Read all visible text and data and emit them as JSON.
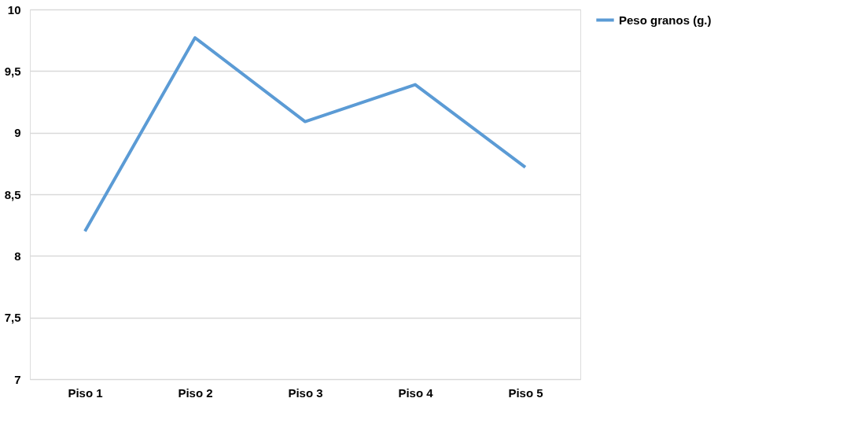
{
  "chart_data": {
    "type": "line",
    "categories": [
      "Piso 1",
      "Piso 2",
      "Piso 3",
      "Piso 4",
      "Piso 5"
    ],
    "series": [
      {
        "name": "Peso granos (g.)",
        "color": "#5b9bd5",
        "values": [
          8.2,
          9.77,
          9.09,
          9.39,
          8.72
        ]
      }
    ],
    "ylim": [
      7,
      10
    ],
    "yticks": [
      7,
      {
        "value": 7.5,
        "label": "7,5"
      },
      8,
      {
        "value": 8.5,
        "label": "8,5"
      },
      9,
      {
        "value": 9.5,
        "label": "9,5"
      },
      10
    ],
    "grid": "y",
    "legend": "right",
    "marker": "none",
    "line_style": "solid"
  }
}
